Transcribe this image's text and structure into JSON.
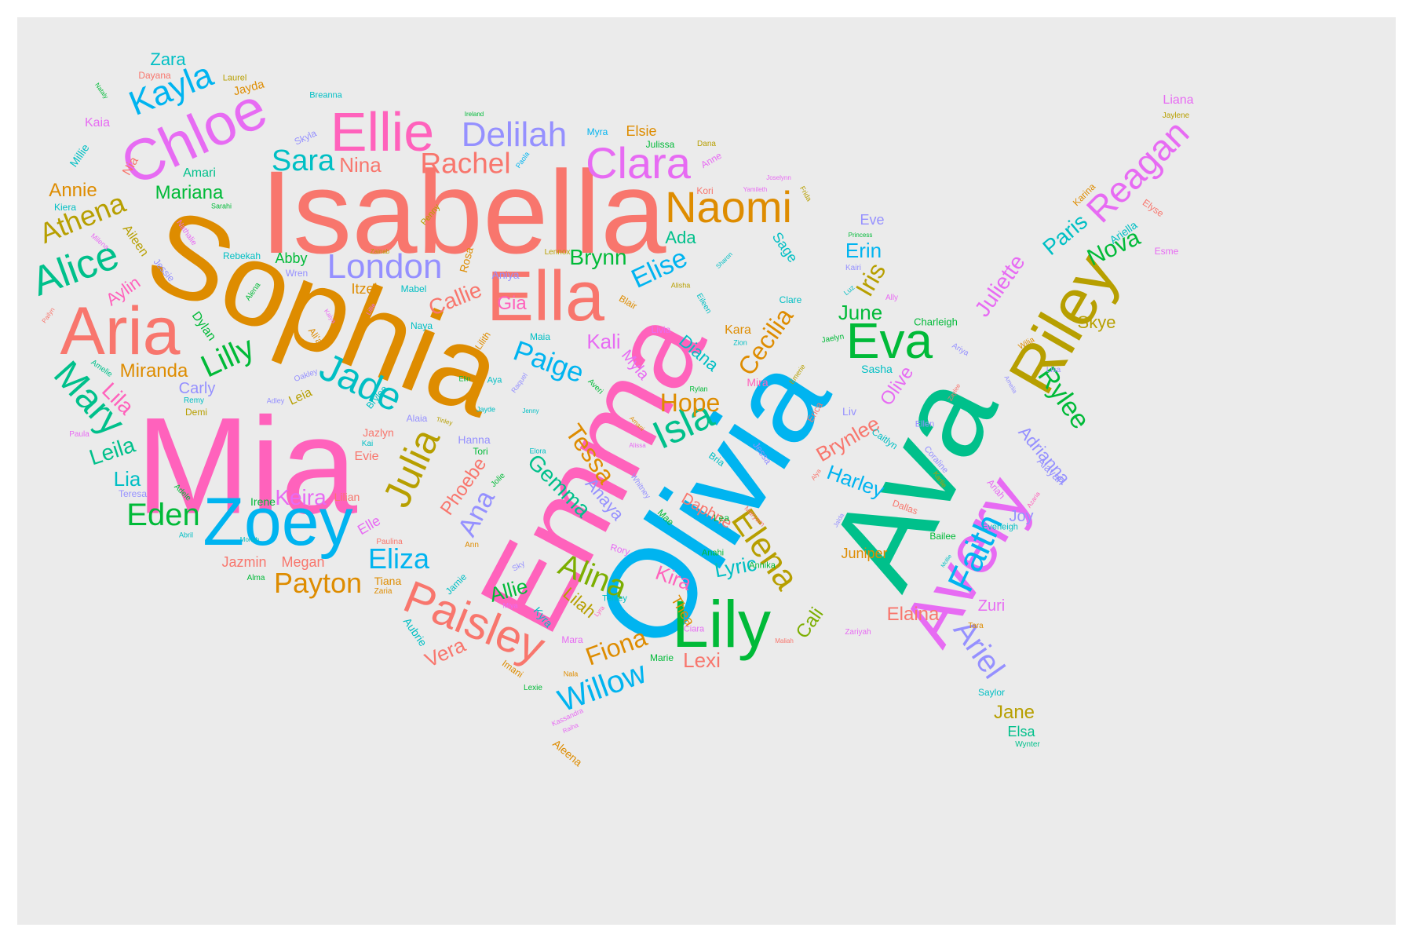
{
  "palette": {
    "salmon": "#f8766d",
    "orange": "#de8c00",
    "olive": "#b79f00",
    "green": "#00ba38",
    "teal": "#00c08b",
    "cyan": "#00bfc4",
    "blue": "#00b4f0",
    "purple": "#9590ff",
    "violet": "#e76bf3",
    "pink": "#ff62bc",
    "olive2": "#7cae00"
  },
  "words": [
    "Isabella",
    "Sophia",
    "Mia",
    "Emma",
    "Olivia",
    "Ava",
    "Avery",
    "Riley",
    "Lily",
    "Chloe",
    "Ellie",
    "Ella",
    "Aria",
    "Zoey",
    "Alice",
    "Paisley",
    "Clara",
    "Naomi",
    "Delilah",
    "Rachel",
    "Kayla",
    "London",
    "Eva",
    "Jade",
    "Julia",
    "Isla",
    "Faith",
    "Elena",
    "Mary",
    "Athena",
    "Lilly",
    "Reagan",
    "Paige",
    "Alina",
    "Willow",
    "Ariel",
    "Eliza",
    "Sara",
    "Payton",
    "Eden",
    "Fiona",
    "Elise",
    "Iris",
    "Tessa",
    "Hope",
    "Cecilia",
    "Ana",
    "Brynn",
    "Juliette",
    "Nova",
    "Rylee",
    "Gemma",
    "Keira",
    "Leila",
    "Nina",
    "Lila",
    "Miranda",
    "Annie",
    "Zara",
    "Gia",
    "Callie",
    "Kali",
    "Mariana",
    "Lia",
    "Paris",
    "Aylin",
    "Phoebe",
    "Brynlee",
    "Anaya",
    "Harley",
    "Lyric",
    "Kira",
    "Allie",
    "Lilah",
    "Lexi",
    "Vera",
    "Adrianna",
    "Erin",
    "June",
    "Skye",
    "Diana",
    "Ada",
    "Daphne",
    "Elaina",
    "Zuri",
    "Jane",
    "Joy",
    "Olive",
    "Mira",
    "Cali",
    "Thea",
    "Juniper",
    "Liana",
    "Elsa",
    "Megan",
    "Jazmin",
    "Liv",
    "Carly",
    "Rosa",
    "Itzel",
    "Blair",
    "Abby",
    "Aileen",
    "Amari",
    "Dylan",
    "Leia",
    "Kara",
    "Evie",
    "Elle",
    "Lilian",
    "Irene",
    "Tiana",
    "Myla",
    "Eve",
    "Aniya",
    "Sasha",
    "Hanna",
    "Tori",
    "Alaia",
    "Jaylene",
    "Esme",
    "Ariella",
    "Karina",
    "Elyse",
    "Alayah",
    "Ariah",
    "Bailee",
    "Everleigh",
    "Saylor",
    "Wynter",
    "Tara",
    "Coraline",
    "Karlie",
    "Azaria",
    "Ellen",
    "Caitlyn",
    "Jessa",
    "Erica",
    "Emerie",
    "Jaelyn",
    "Charleigh",
    "Ariya",
    "Wilia",
    "Lisa",
    "Amelia",
    "Zaylee",
    "Ally",
    "Luz",
    "Kairi",
    "Princess",
    "Clare",
    "Eileen",
    "Sharon",
    "Sage",
    "Frida",
    "Yamileth",
    "Joselynn",
    "Kori",
    "Anne",
    "Dana",
    "Julissa",
    "Elsie",
    "Myra",
    "Paola",
    "Ireland",
    "Breanna",
    "Skyla",
    "Laurel",
    "Jayda",
    "Dayana",
    "Nataly",
    "Kaia",
    "Millie",
    "Nia",
    "Kiera",
    "Sarahi",
    "Milena",
    "Nathalie",
    "Penny",
    "Zainab",
    "Lennox",
    "Rebekah",
    "Wren",
    "Jessie",
    "Alena",
    "Mabel",
    "Naya",
    "Lillie",
    "Kaiya",
    "Ali'a",
    "Pailyn",
    "Amelie",
    "Oakley",
    "Adley",
    "Remy",
    "Demi",
    "Paula",
    "Teresa",
    "Adele",
    "Abril",
    "Moriah",
    "Alma",
    "Paulina",
    "Ann",
    "Sky",
    "Zaria",
    "Jamie",
    "Aubrie",
    "Miya",
    "Kyra",
    "Imani",
    "Lexie",
    "Nala",
    "Mara",
    "Marie",
    "Ciara",
    "Lyra",
    "Rory",
    "Tenley",
    "Anahi",
    "Annika",
    "Maliah",
    "Zariyah",
    "Kassandra",
    "Raiha",
    "Aleena",
    "Jolie",
    "Elora",
    "Jayde",
    "Jenny",
    "Tinley",
    "Raquel",
    "Maia",
    "Lilith",
    "Elin",
    "Aya",
    "Averi",
    "Amani",
    "Alissa",
    "Whitney",
    "Bria",
    "Rylan",
    "Zion",
    "Livia",
    "Maryam",
    "Dallas",
    "Alya",
    "Jalda",
    "Mollie",
    "Lea",
    "Mae",
    "Alisha",
    "Kai",
    "Brylee",
    "Jazlyn"
  ]
}
